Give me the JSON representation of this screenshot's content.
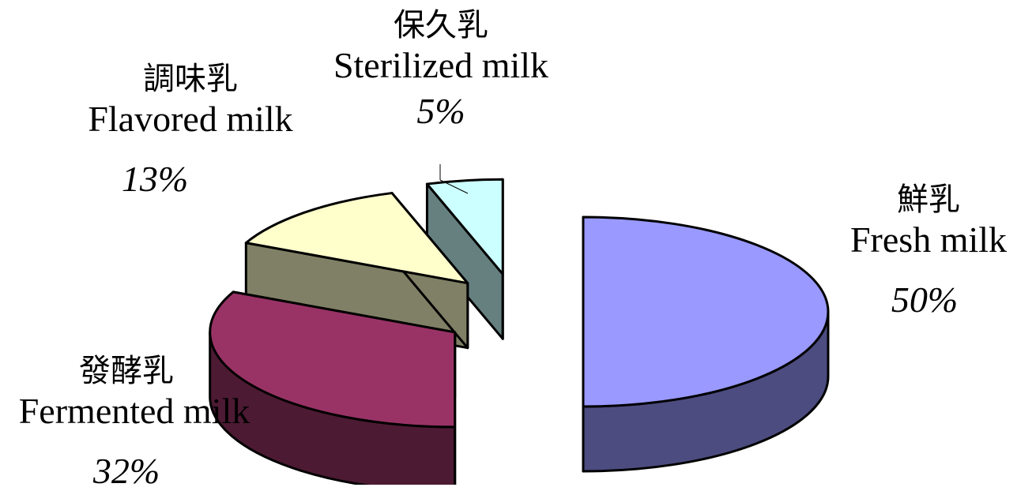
{
  "chart_data": {
    "type": "pie",
    "title": "",
    "slices": [
      {
        "label_zh": "鮮乳",
        "label_en": "Fresh milk",
        "value": 50,
        "pct_label": "50%",
        "top_color": "#9999ff",
        "side_color": "#4c4c80"
      },
      {
        "label_zh": "發酵乳",
        "label_en": "Fermented milk",
        "value": 32,
        "pct_label": "32%",
        "top_color": "#993366",
        "side_color": "#4d1a33"
      },
      {
        "label_zh": "調味乳",
        "label_en": "Flavored milk",
        "value": 13,
        "pct_label": "13%",
        "top_color": "#ffffcc",
        "side_color": "#808066"
      },
      {
        "label_zh": "保久乳",
        "label_en": "Sterilized milk",
        "value": 5,
        "pct_label": "5%",
        "top_color": "#ccffff",
        "side_color": "#668080"
      }
    ],
    "style": "3d-exploded",
    "legend": "none"
  }
}
